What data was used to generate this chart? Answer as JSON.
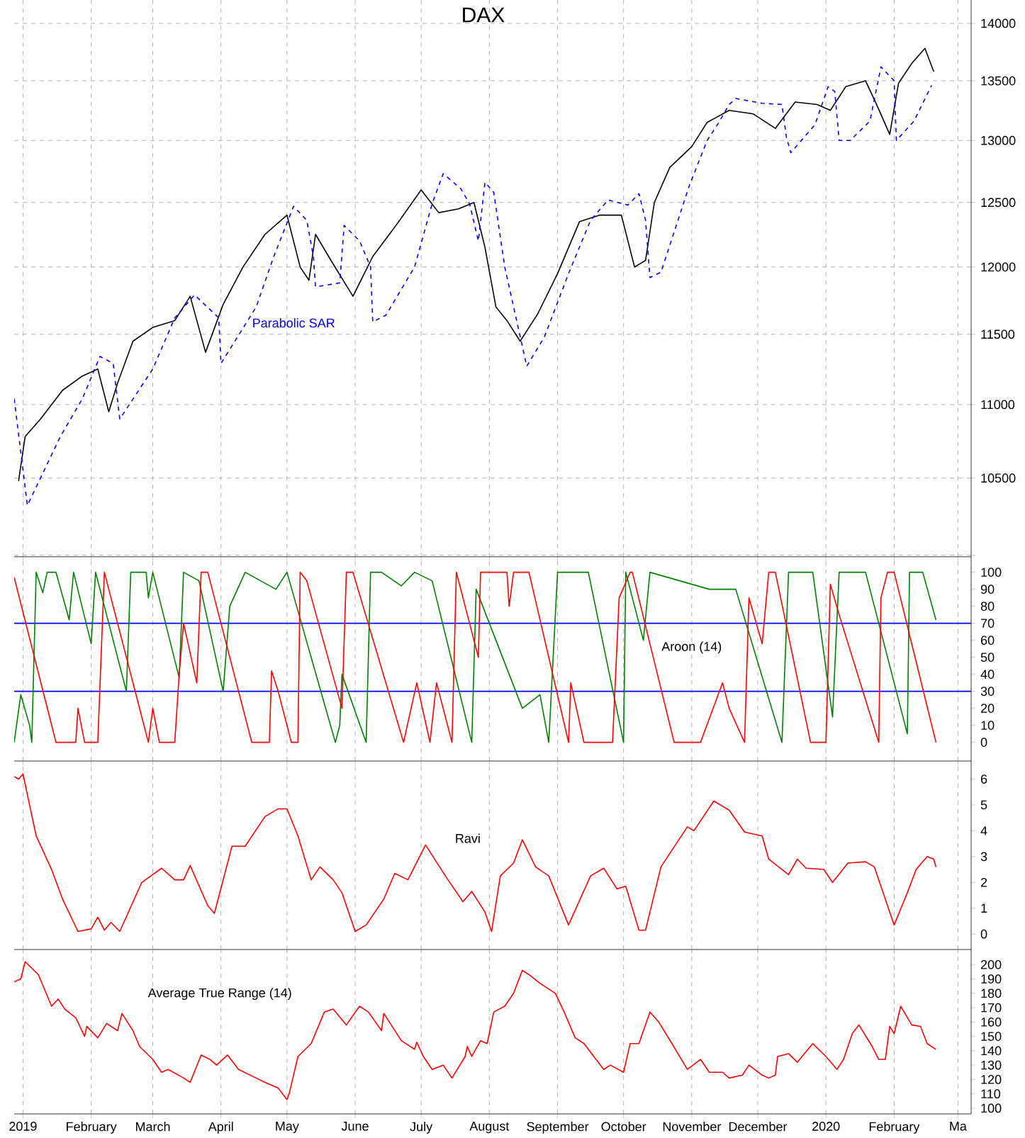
{
  "chart_data": [
    {
      "type": "line",
      "title": "DAX",
      "log": true,
      "grid": true,
      "tick_labels": "y",
      "xlim": [
        "2018-12-28",
        "2020-03-07"
      ],
      "xticks": [
        {
          "value": "2019-01-01",
          "label": null
        },
        {
          "value": "2019-02-01",
          "label": null
        },
        {
          "value": "2019-03-01",
          "label": null
        },
        {
          "value": "2019-04-01",
          "label": null
        },
        {
          "value": "2019-05-01",
          "label": null
        },
        {
          "value": "2019-06-01",
          "label": null
        },
        {
          "value": "2019-07-01",
          "label": null
        },
        {
          "value": "2019-08-01",
          "label": null
        },
        {
          "value": "2019-09-01",
          "label": null
        },
        {
          "value": "2019-10-01",
          "label": null
        },
        {
          "value": "2019-11-01",
          "label": null
        },
        {
          "value": "2019-12-01",
          "label": null
        },
        {
          "value": "2020-01-01",
          "label": null
        },
        {
          "value": "2020-02-01",
          "label": null
        },
        {
          "value": "2020-03-01",
          "label": null
        }
      ],
      "ylim": [
        9990,
        14210
      ],
      "yticks": [
        {
          "value": 10000,
          "label": null
        },
        10500,
        11000,
        11500,
        12000,
        12500,
        13000,
        13500,
        14000
      ],
      "series": [
        {
          "color": "#000000",
          "x": [
            "2018-12-30",
            "2019-01-02",
            "2019-01-09",
            "2019-01-19",
            "2019-01-28",
            "2019-02-04",
            "2019-02-09",
            "2019-02-13",
            "2019-02-20",
            "2019-03-01",
            "2019-03-11",
            "2019-03-18",
            "2019-03-25",
            "2019-04-02",
            "2019-04-11",
            "2019-04-21",
            "2019-05-01",
            "2019-05-07",
            "2019-05-11",
            "2019-05-14",
            "2019-05-21",
            "2019-05-31",
            "2019-06-09",
            "2019-06-20",
            "2019-07-01",
            "2019-07-09",
            "2019-07-18",
            "2019-07-25",
            "2019-07-30",
            "2019-08-04",
            "2019-08-09",
            "2019-08-15",
            "2019-08-23",
            "2019-09-01",
            "2019-09-11",
            "2019-09-20",
            "2019-09-30",
            "2019-10-06",
            "2019-10-11",
            "2019-10-15",
            "2019-10-22",
            "2019-11-01",
            "2019-11-08",
            "2019-11-18",
            "2019-11-29",
            "2019-12-09",
            "2019-12-18",
            "2019-12-28",
            "2020-01-03",
            "2020-01-10",
            "2020-01-19",
            "2020-01-24",
            "2020-01-30",
            "2020-02-03",
            "2020-02-09",
            "2020-02-15",
            "2020-02-19"
          ],
          "values": [
            10480,
            10780,
            10900,
            11100,
            11200,
            11250,
            10950,
            11150,
            11450,
            11550,
            11600,
            11780,
            11370,
            11720,
            12000,
            12250,
            12400,
            12000,
            11900,
            12250,
            12050,
            11780,
            12080,
            12330,
            12600,
            12420,
            12450,
            12500,
            12150,
            11700,
            11600,
            11450,
            11650,
            11950,
            12350,
            12400,
            12400,
            12000,
            12050,
            12500,
            12780,
            12950,
            13150,
            13250,
            13220,
            13100,
            13320,
            13300,
            13250,
            13450,
            13500,
            13300,
            13050,
            13480,
            13650,
            13780,
            13580
          ]
        },
        {
          "name": "Parabolic SAR",
          "color": "#0000ff",
          "line_style": "dashed",
          "x": [
            "2018-12-28",
            "2019-01-03",
            "2019-01-18",
            "2019-01-28",
            "2019-02-05",
            "2019-02-11",
            "2019-02-14",
            "2019-03-01",
            "2019-03-11",
            "2019-03-20",
            "2019-03-31",
            "2019-04-01",
            "2019-04-17",
            "2019-04-25",
            "2019-05-04",
            "2019-05-10",
            "2019-05-13",
            "2019-05-14",
            "2019-05-25",
            "2019-05-27",
            "2019-06-03",
            "2019-06-08",
            "2019-06-09",
            "2019-06-15",
            "2019-06-28",
            "2019-07-06",
            "2019-07-11",
            "2019-07-19",
            "2019-07-23",
            "2019-07-27",
            "2019-07-30",
            "2019-08-03",
            "2019-08-08",
            "2019-08-18",
            "2019-08-26",
            "2019-09-06",
            "2019-09-16",
            "2019-09-24",
            "2019-10-03",
            "2019-10-08",
            "2019-10-11",
            "2019-10-13",
            "2019-10-18",
            "2019-10-31",
            "2019-11-08",
            "2019-11-13",
            "2019-11-18",
            "2019-11-21",
            "2019-12-03",
            "2019-12-12",
            "2019-12-14",
            "2019-12-16",
            "2019-12-27",
            "2020-01-02",
            "2020-01-05",
            "2020-01-07",
            "2020-01-12",
            "2020-01-21",
            "2020-01-26",
            "2020-02-01",
            "2020-02-02",
            "2020-02-10",
            "2020-02-18"
          ],
          "values": [
            11040,
            10320,
            10780,
            11040,
            11340,
            11290,
            10900,
            11250,
            11620,
            11790,
            11620,
            11290,
            11700,
            12080,
            12470,
            12360,
            12080,
            11850,
            11880,
            12320,
            12200,
            12000,
            11590,
            11640,
            12000,
            12490,
            12730,
            12610,
            12490,
            12200,
            12660,
            12580,
            12000,
            11270,
            11480,
            11950,
            12360,
            12520,
            12480,
            12570,
            12360,
            11920,
            11960,
            12640,
            13000,
            13140,
            13300,
            13350,
            13310,
            13300,
            13030,
            12900,
            13130,
            13450,
            13410,
            13000,
            13000,
            13160,
            13620,
            13500,
            13000,
            13160,
            13460
          ]
        }
      ]
    },
    {
      "type": "line",
      "grid": "x",
      "tick_labels": "y",
      "annotations": [
        "Aroon (14)"
      ],
      "xlim": [
        "2018-12-28",
        "2020-03-07"
      ],
      "xticks": [
        {
          "value": "2019-01-01",
          "label": null
        },
        {
          "value": "2019-02-01",
          "label": null
        },
        {
          "value": "2019-03-01",
          "label": null
        },
        {
          "value": "2019-04-01",
          "label": null
        },
        {
          "value": "2019-05-01",
          "label": null
        },
        {
          "value": "2019-06-01",
          "label": null
        },
        {
          "value": "2019-07-01",
          "label": null
        },
        {
          "value": "2019-08-01",
          "label": null
        },
        {
          "value": "2019-09-01",
          "label": null
        },
        {
          "value": "2019-10-01",
          "label": null
        },
        {
          "value": "2019-11-01",
          "label": null
        },
        {
          "value": "2019-12-01",
          "label": null
        },
        {
          "value": "2020-01-01",
          "label": null
        },
        {
          "value": "2020-02-01",
          "label": null
        },
        {
          "value": "2020-03-01",
          "label": null
        }
      ],
      "ylim": [
        -11,
        109
      ],
      "yticks": [
        0,
        10,
        20,
        30,
        40,
        50,
        60,
        70,
        80,
        90,
        100
      ],
      "ref_lines": [
        {
          "axis": "y",
          "value": 70,
          "color": "#0000ff"
        },
        {
          "axis": "y",
          "value": 30,
          "color": "#0000ff"
        }
      ],
      "series": [
        {
          "color": "#008000",
          "x": [
            "2018-12-28",
            "2018-12-31",
            "2019-01-04",
            "2019-01-05",
            "2019-01-07",
            "2019-01-10",
            "2019-01-12",
            "2019-01-16",
            "2019-01-22",
            "2019-01-24",
            "2019-02-01",
            "2019-02-03",
            "2019-02-17",
            "2019-02-19",
            "2019-02-26",
            "2019-02-27",
            "2019-03-01",
            "2019-03-13",
            "2019-03-15",
            "2019-03-22",
            "2019-04-02",
            "2019-04-05",
            "2019-04-12",
            "2019-04-26",
            "2019-05-01",
            "2019-05-23",
            "2019-05-25",
            "2019-05-26",
            "2019-06-06",
            "2019-06-08",
            "2019-06-13",
            "2019-06-22",
            "2019-06-28",
            "2019-07-06",
            "2019-07-24",
            "2019-07-26",
            "2019-08-16",
            "2019-08-24",
            "2019-08-28",
            "2019-09-01",
            "2019-09-15",
            "2019-10-01",
            "2019-10-02",
            "2019-10-10",
            "2019-10-13",
            "2019-11-09",
            "2019-11-21",
            "2019-12-12",
            "2019-12-15",
            "2019-12-26",
            "2020-01-04",
            "2020-01-07",
            "2020-01-19",
            "2020-02-07",
            "2020-02-08",
            "2020-02-14",
            "2020-02-20"
          ],
          "values": [
            0,
            28,
            10,
            0,
            100,
            88,
            100,
            100,
            72,
            100,
            58,
            100,
            30,
            100,
            100,
            85,
            100,
            38,
            100,
            95,
            30,
            80,
            100,
            90,
            100,
            0,
            10,
            40,
            0,
            100,
            100,
            92,
            100,
            95,
            0,
            90,
            20,
            28,
            0,
            100,
            100,
            0,
            100,
            60,
            100,
            90,
            90,
            0,
            100,
            100,
            15,
            100,
            100,
            5,
            100,
            100,
            72
          ]
        },
        {
          "color": "#ff0000",
          "x": [
            "2018-12-28",
            "2019-01-16",
            "2019-01-25",
            "2019-01-26",
            "2019-01-29",
            "2019-02-04",
            "2019-02-07",
            "2019-02-27",
            "2019-03-01",
            "2019-03-04",
            "2019-03-11",
            "2019-03-13",
            "2019-03-15",
            "2019-03-21",
            "2019-03-23",
            "2019-03-26",
            "2019-04-15",
            "2019-04-23",
            "2019-04-24",
            "2019-04-27",
            "2019-05-03",
            "2019-05-06",
            "2019-05-07",
            "2019-05-10",
            "2019-05-26",
            "2019-05-28",
            "2019-05-31",
            "2019-06-23",
            "2019-06-29",
            "2019-07-05",
            "2019-07-08",
            "2019-07-15",
            "2019-07-17",
            "2019-07-21",
            "2019-07-27",
            "2019-07-28",
            "2019-08-09",
            "2019-08-10",
            "2019-08-12",
            "2019-08-19",
            "2019-09-06",
            "2019-09-07",
            "2019-09-13",
            "2019-09-26",
            "2019-09-29",
            "2019-10-04",
            "2019-10-05",
            "2019-10-24",
            "2019-11-05",
            "2019-11-15",
            "2019-11-18",
            "2019-11-25",
            "2019-11-27",
            "2019-12-03",
            "2019-12-06",
            "2019-12-09",
            "2019-12-25",
            "2020-01-01",
            "2020-01-03",
            "2020-01-07",
            "2020-01-25",
            "2020-01-26",
            "2020-01-29",
            "2020-02-01",
            "2020-02-20"
          ],
          "values": [
            97,
            0,
            0,
            20,
            0,
            0,
            100,
            0,
            20,
            0,
            0,
            40,
            70,
            35,
            100,
            100,
            0,
            0,
            42,
            30,
            0,
            0,
            100,
            95,
            20,
            100,
            100,
            0,
            35,
            0,
            35,
            0,
            100,
            80,
            50,
            100,
            100,
            80,
            100,
            100,
            0,
            35,
            0,
            0,
            85,
            100,
            100,
            0,
            0,
            35,
            20,
            0,
            85,
            58,
            100,
            100,
            0,
            0,
            93,
            75,
            0,
            85,
            100,
            100,
            0
          ]
        }
      ]
    },
    {
      "type": "line",
      "grid": "x",
      "tick_labels": "y",
      "annotations": [
        "Ravi"
      ],
      "xlim": [
        "2018-12-28",
        "2020-03-07"
      ],
      "xticks": [
        {
          "value": "2019-01-01",
          "label": null
        },
        {
          "value": "2019-02-01",
          "label": null
        },
        {
          "value": "2019-03-01",
          "label": null
        },
        {
          "value": "2019-04-01",
          "label": null
        },
        {
          "value": "2019-05-01",
          "label": null
        },
        {
          "value": "2019-06-01",
          "label": null
        },
        {
          "value": "2019-07-01",
          "label": null
        },
        {
          "value": "2019-08-01",
          "label": null
        },
        {
          "value": "2019-09-01",
          "label": null
        },
        {
          "value": "2019-10-01",
          "label": null
        },
        {
          "value": "2019-11-01",
          "label": null
        },
        {
          "value": "2019-12-01",
          "label": null
        },
        {
          "value": "2020-01-01",
          "label": null
        },
        {
          "value": "2020-02-01",
          "label": null
        },
        {
          "value": "2020-03-01",
          "label": null
        }
      ],
      "ylim": [
        -0.6,
        6.7
      ],
      "yticks": [
        0,
        1,
        2,
        3,
        4,
        5,
        6
      ],
      "series": [
        {
          "color": "#ff0000",
          "x": [
            "2018-12-28",
            "2018-12-30",
            "2019-01-01",
            "2019-01-07",
            "2019-01-14",
            "2019-01-19",
            "2019-01-26",
            "2019-02-01",
            "2019-02-04",
            "2019-02-07",
            "2019-02-10",
            "2019-02-14",
            "2019-02-24",
            "2019-03-05",
            "2019-03-11",
            "2019-03-15",
            "2019-03-18",
            "2019-03-26",
            "2019-03-29",
            "2019-04-06",
            "2019-04-12",
            "2019-04-21",
            "2019-04-27",
            "2019-05-01",
            "2019-05-06",
            "2019-05-12",
            "2019-05-16",
            "2019-05-22",
            "2019-05-26",
            "2019-06-01",
            "2019-06-06",
            "2019-06-14",
            "2019-06-19",
            "2019-06-25",
            "2019-07-03",
            "2019-07-12",
            "2019-07-20",
            "2019-07-24",
            "2019-07-30",
            "2019-08-02",
            "2019-08-06",
            "2019-08-12",
            "2019-08-16",
            "2019-08-22",
            "2019-08-28",
            "2019-09-06",
            "2019-09-16",
            "2019-09-22",
            "2019-09-28",
            "2019-10-02",
            "2019-10-08",
            "2019-10-11",
            "2019-10-18",
            "2019-10-30",
            "2019-11-02",
            "2019-11-11",
            "2019-11-18",
            "2019-11-25",
            "2019-12-03",
            "2019-12-06",
            "2019-12-15",
            "2019-12-19",
            "2019-12-23",
            "2019-12-31",
            "2020-01-04",
            "2020-01-11",
            "2020-01-19",
            "2020-01-23",
            "2020-01-26",
            "2020-02-01",
            "2020-02-07",
            "2020-02-11",
            "2020-02-16",
            "2020-02-19",
            "2020-02-20"
          ],
          "values": [
            6.1,
            6.0,
            6.2,
            3.8,
            2.5,
            1.35,
            0.1,
            0.2,
            0.65,
            0.15,
            0.45,
            0.1,
            2.0,
            2.55,
            2.1,
            2.1,
            2.65,
            1.1,
            0.8,
            3.4,
            3.4,
            4.55,
            4.85,
            4.85,
            3.8,
            2.1,
            2.6,
            2.1,
            1.6,
            0.1,
            0.35,
            1.35,
            2.35,
            2.1,
            3.45,
            2.25,
            1.25,
            1.65,
            0.85,
            0.1,
            2.25,
            2.75,
            3.65,
            2.6,
            2.25,
            0.35,
            2.25,
            2.55,
            1.75,
            1.85,
            0.15,
            0.15,
            2.6,
            4.15,
            4.0,
            5.15,
            4.8,
            3.95,
            3.8,
            2.9,
            2.3,
            2.9,
            2.55,
            2.5,
            2.0,
            2.75,
            2.8,
            2.6,
            1.85,
            0.35,
            1.6,
            2.5,
            3.0,
            2.9,
            2.6
          ]
        }
      ]
    },
    {
      "type": "line",
      "grid": "x",
      "annotations": [
        "Average True Range (14)"
      ],
      "xlim": [
        "2018-12-28",
        "2020-03-07"
      ],
      "xticks": [
        {
          "value": "2019-01-01",
          "label": "2019"
        },
        {
          "value": "2019-02-01",
          "label": "February"
        },
        {
          "value": "2019-03-01",
          "label": "March"
        },
        {
          "value": "2019-04-01",
          "label": "April"
        },
        {
          "value": "2019-05-01",
          "label": "May"
        },
        {
          "value": "2019-06-01",
          "label": "June"
        },
        {
          "value": "2019-07-01",
          "label": "July"
        },
        {
          "value": "2019-08-01",
          "label": "August"
        },
        {
          "value": "2019-09-01",
          "label": "September"
        },
        {
          "value": "2019-10-01",
          "label": "October"
        },
        {
          "value": "2019-11-01",
          "label": "November"
        },
        {
          "value": "2019-12-01",
          "label": "December"
        },
        {
          "value": "2020-01-01",
          "label": "2020"
        },
        {
          "value": "2020-02-01",
          "label": "February"
        },
        {
          "value": "2020-03-01",
          "label": "Ma"
        }
      ],
      "ylim": [
        96,
        210.5
      ],
      "yticks": [
        100,
        110,
        120,
        130,
        140,
        150,
        160,
        170,
        180,
        190,
        200
      ],
      "series": [
        {
          "color": "#ff0000",
          "x": [
            "2018-12-28",
            "2018-12-31",
            "2019-01-02",
            "2019-01-08",
            "2019-01-14",
            "2019-01-17",
            "2019-01-20",
            "2019-01-25",
            "2019-01-29",
            "2019-01-30",
            "2019-02-04",
            "2019-02-08",
            "2019-02-13",
            "2019-02-15",
            "2019-02-20",
            "2019-02-23",
            "2019-03-01",
            "2019-03-05",
            "2019-03-08",
            "2019-03-15",
            "2019-03-18",
            "2019-03-23",
            "2019-03-27",
            "2019-03-30",
            "2019-04-04",
            "2019-04-09",
            "2019-04-17",
            "2019-04-21",
            "2019-04-27",
            "2019-05-01",
            "2019-05-02",
            "2019-05-06",
            "2019-05-12",
            "2019-05-18",
            "2019-05-22",
            "2019-05-28",
            "2019-06-03",
            "2019-06-07",
            "2019-06-13",
            "2019-06-14",
            "2019-06-22",
            "2019-06-28",
            "2019-06-29",
            "2019-07-02",
            "2019-07-06",
            "2019-07-11",
            "2019-07-15",
            "2019-07-21",
            "2019-07-22",
            "2019-07-24",
            "2019-07-28",
            "2019-07-31",
            "2019-08-03",
            "2019-08-08",
            "2019-08-12",
            "2019-08-16",
            "2019-08-19",
            "2019-08-24",
            "2019-08-31",
            "2019-09-04",
            "2019-09-09",
            "2019-09-13",
            "2019-09-22",
            "2019-09-25",
            "2019-10-01",
            "2019-10-04",
            "2019-10-08",
            "2019-10-13",
            "2019-10-17",
            "2019-10-23",
            "2019-10-30",
            "2019-11-05",
            "2019-11-09",
            "2019-11-15",
            "2019-11-18",
            "2019-11-24",
            "2019-11-27",
            "2019-12-03",
            "2019-12-06",
            "2019-12-09",
            "2019-12-10",
            "2019-12-15",
            "2019-12-19",
            "2019-12-26",
            "2020-01-01",
            "2020-01-06",
            "2020-01-09",
            "2020-01-13",
            "2020-01-16",
            "2020-01-22",
            "2020-01-25",
            "2020-01-28",
            "2020-01-30",
            "2020-02-01",
            "2020-02-04",
            "2020-02-09",
            "2020-02-13",
            "2020-02-16",
            "2020-02-20"
          ],
          "values": [
            188,
            190,
            202,
            193,
            171,
            176,
            169,
            163,
            150,
            157,
            149,
            159,
            154,
            166,
            154,
            143,
            134,
            125,
            127,
            121,
            118,
            137,
            134,
            130,
            137,
            127,
            121,
            118,
            114,
            106,
            110,
            136,
            145,
            167,
            169,
            158,
            171,
            167,
            154,
            166,
            147,
            141,
            146,
            136,
            127,
            130,
            121,
            136,
            143,
            136,
            147,
            145,
            167,
            171,
            180,
            196,
            193,
            187,
            180,
            167,
            149,
            145,
            127,
            130,
            125,
            145,
            145,
            167,
            160,
            145,
            127,
            134,
            125,
            125,
            121,
            123,
            130,
            123,
            121,
            123,
            136,
            138,
            132,
            145,
            136,
            127,
            134,
            152,
            158,
            143,
            134,
            134,
            157,
            152,
            171,
            158,
            157,
            145,
            141
          ]
        }
      ]
    }
  ]
}
